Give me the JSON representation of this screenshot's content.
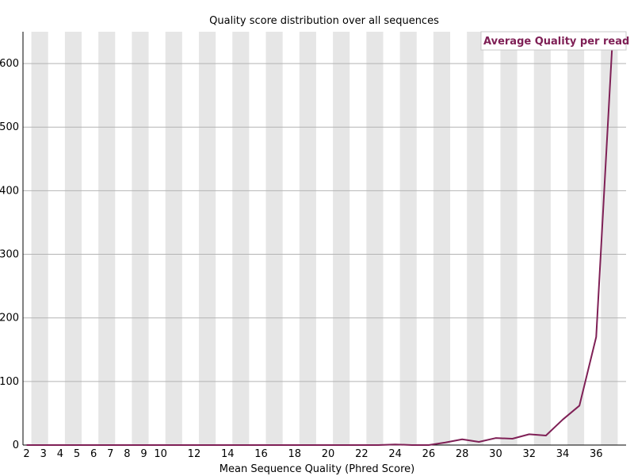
{
  "chart_data": {
    "type": "line",
    "title": "Quality score distribution over all sequences",
    "xlabel": "Mean Sequence Quality (Phred Score)",
    "ylabel": "",
    "x": [
      2,
      3,
      4,
      5,
      6,
      7,
      8,
      9,
      10,
      11,
      12,
      13,
      14,
      15,
      16,
      17,
      18,
      19,
      20,
      21,
      22,
      23,
      24,
      25,
      26,
      27,
      28,
      29,
      30,
      31,
      32,
      33,
      34,
      35,
      36,
      37
    ],
    "x_tick_labels": [
      "2",
      "3",
      "4",
      "5",
      "6",
      "7",
      "8",
      "9",
      "10",
      "12",
      "14",
      "16",
      "18",
      "20",
      "22",
      "24",
      "26",
      "28",
      "30",
      "32",
      "34",
      "36"
    ],
    "ylim": [
      0,
      650
    ],
    "y_ticks": [
      0,
      100,
      200,
      300,
      400,
      500,
      600
    ],
    "y_tick_labels": [
      "0",
      "100",
      "200",
      "300",
      "400",
      "500",
      "600"
    ],
    "grid": true,
    "legend_position": "top-right",
    "series": [
      {
        "name": "Average Quality per read",
        "color": "#7f2056",
        "values": [
          0,
          0,
          0,
          0,
          0,
          0,
          0,
          0,
          0,
          0,
          0,
          0,
          0,
          0,
          0,
          0,
          0,
          0,
          0,
          0,
          0,
          0,
          1,
          0,
          0,
          4,
          9,
          5,
          11,
          10,
          17,
          15,
          40,
          62,
          170,
          650
        ]
      }
    ]
  }
}
